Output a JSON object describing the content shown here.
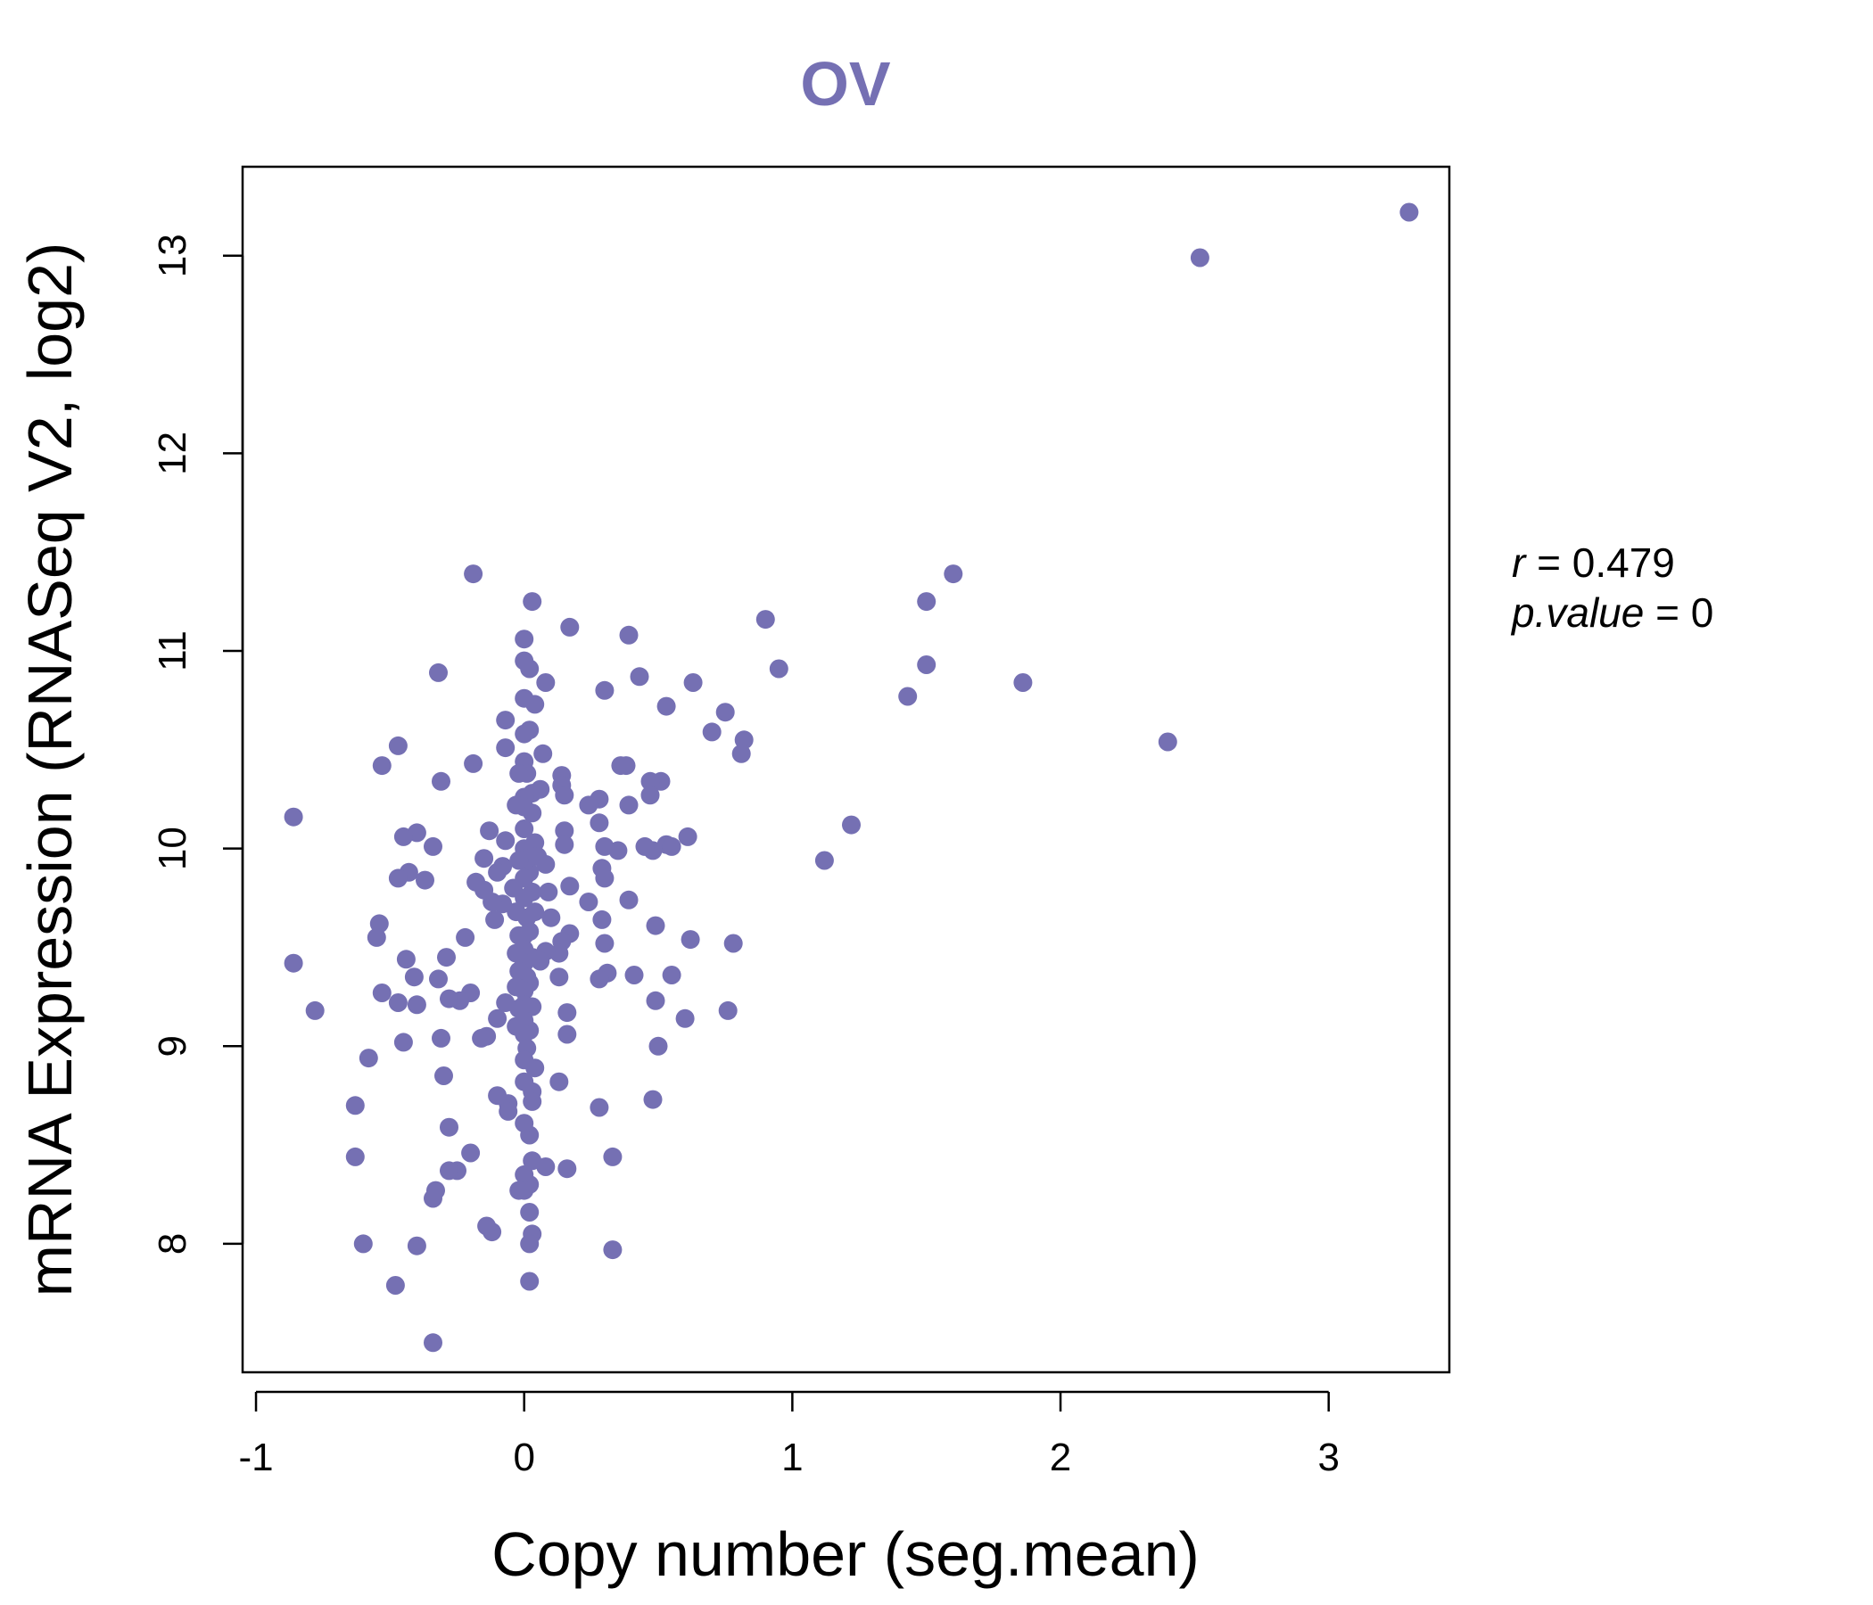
{
  "chart_data": {
    "type": "scatter",
    "title": "OV",
    "xlabel": "Copy number (seg.mean)",
    "ylabel": "mRNA Expression (RNASeq V2, log2)",
    "xlim": [
      -1.05,
      3.45
    ],
    "ylim": [
      7.35,
      13.45
    ],
    "x_ticks": [
      -1,
      0,
      1,
      2,
      3
    ],
    "x_tick_labels": [
      "-1",
      "0",
      "1",
      "2",
      "3"
    ],
    "y_ticks": [
      8,
      9,
      10,
      11,
      12,
      13
    ],
    "y_tick_labels": [
      "8",
      "9",
      "10",
      "11",
      "12",
      "13"
    ],
    "grid": false,
    "point_color": "#7570b3",
    "annotation": {
      "r_label": "r",
      "r_value": "0.479",
      "p_label": "p.value",
      "p_value": "0"
    },
    "points": [
      [
        3.3,
        13.22
      ],
      [
        2.52,
        12.99
      ],
      [
        1.6,
        11.39
      ],
      [
        1.5,
        11.25
      ],
      [
        1.5,
        10.93
      ],
      [
        1.43,
        10.77
      ],
      [
        1.86,
        10.84
      ],
      [
        2.4,
        10.54
      ],
      [
        1.22,
        10.12
      ],
      [
        1.12,
        9.94
      ],
      [
        0.9,
        11.16
      ],
      [
        0.95,
        10.91
      ],
      [
        0.82,
        10.55
      ],
      [
        0.81,
        10.48
      ],
      [
        0.75,
        10.69
      ],
      [
        0.7,
        10.59
      ],
      [
        0.63,
        10.84
      ],
      [
        0.61,
        10.06
      ],
      [
        0.62,
        9.54
      ],
      [
        0.6,
        9.14
      ],
      [
        0.78,
        9.52
      ],
      [
        0.76,
        9.18
      ],
      [
        0.53,
        10.72
      ],
      [
        0.53,
        10.02
      ],
      [
        0.55,
        10.01
      ],
      [
        0.51,
        10.34
      ],
      [
        0.47,
        10.34
      ],
      [
        0.47,
        10.27
      ],
      [
        0.48,
        9.99
      ],
      [
        0.45,
        10.01
      ],
      [
        0.43,
        10.87
      ],
      [
        0.39,
        11.08
      ],
      [
        0.36,
        10.42
      ],
      [
        0.38,
        10.42
      ],
      [
        0.39,
        10.22
      ],
      [
        0.35,
        9.99
      ],
      [
        0.39,
        9.74
      ],
      [
        0.49,
        9.61
      ],
      [
        0.55,
        9.36
      ],
      [
        0.49,
        9.23
      ],
      [
        0.5,
        9.0
      ],
      [
        0.48,
        8.73
      ],
      [
        0.41,
        9.36
      ],
      [
        0.33,
        8.44
      ],
      [
        0.33,
        7.97
      ],
      [
        0.3,
        10.8
      ],
      [
        0.28,
        10.25
      ],
      [
        0.28,
        10.13
      ],
      [
        0.3,
        10.01
      ],
      [
        0.29,
        9.9
      ],
      [
        0.3,
        9.85
      ],
      [
        0.24,
        10.22
      ],
      [
        0.24,
        9.73
      ],
      [
        0.29,
        9.64
      ],
      [
        0.3,
        9.52
      ],
      [
        0.31,
        9.37
      ],
      [
        0.28,
        9.34
      ],
      [
        0.28,
        8.69
      ],
      [
        0.17,
        11.12
      ],
      [
        0.14,
        10.37
      ],
      [
        0.14,
        10.32
      ],
      [
        0.15,
        10.27
      ],
      [
        0.15,
        10.09
      ],
      [
        0.15,
        10.02
      ],
      [
        0.17,
        9.81
      ],
      [
        0.17,
        9.57
      ],
      [
        0.14,
        9.53
      ],
      [
        0.13,
        9.47
      ],
      [
        0.13,
        9.35
      ],
      [
        0.16,
        9.17
      ],
      [
        0.16,
        9.06
      ],
      [
        0.13,
        8.82
      ],
      [
        0.16,
        8.38
      ],
      [
        0.08,
        10.84
      ],
      [
        0.07,
        10.48
      ],
      [
        0.06,
        10.3
      ],
      [
        0.08,
        9.92
      ],
      [
        0.09,
        9.78
      ],
      [
        0.1,
        9.65
      ],
      [
        0.08,
        9.48
      ],
      [
        0.06,
        9.43
      ],
      [
        0.08,
        8.39
      ],
      [
        0.03,
        11.25
      ],
      [
        0.04,
        10.73
      ],
      [
        0.02,
        10.6
      ],
      [
        0.03,
        10.28
      ],
      [
        0.03,
        10.18
      ],
      [
        0.04,
        10.03
      ],
      [
        0.05,
        9.96
      ],
      [
        0.02,
        9.88
      ],
      [
        0.03,
        9.78
      ],
      [
        0.04,
        9.68
      ],
      [
        0.02,
        9.58
      ],
      [
        0.03,
        9.45
      ],
      [
        0.02,
        9.32
      ],
      [
        0.03,
        9.2
      ],
      [
        0.02,
        9.08
      ],
      [
        0.04,
        8.89
      ],
      [
        0.03,
        8.77
      ],
      [
        0.03,
        8.72
      ],
      [
        0.02,
        8.55
      ],
      [
        0.03,
        8.42
      ],
      [
        0.02,
        8.3
      ],
      [
        0.02,
        8.16
      ],
      [
        0.03,
        8.05
      ],
      [
        0.02,
        8.0
      ],
      [
        0.02,
        7.81
      ],
      [
        0.0,
        11.06
      ],
      [
        0.0,
        10.95
      ],
      [
        0.02,
        10.91
      ],
      [
        0.0,
        10.76
      ],
      [
        0.0,
        10.58
      ],
      [
        0.0,
        10.44
      ],
      [
        0.01,
        10.38
      ],
      [
        0.0,
        10.26
      ],
      [
        0.0,
        10.21
      ],
      [
        0.0,
        10.1
      ],
      [
        0.0,
        10.0
      ],
      [
        0.01,
        9.95
      ],
      [
        0.0,
        9.85
      ],
      [
        0.0,
        9.75
      ],
      [
        0.01,
        9.65
      ],
      [
        0.0,
        9.56
      ],
      [
        0.0,
        9.49
      ],
      [
        0.0,
        9.42
      ],
      [
        0.01,
        9.35
      ],
      [
        0.0,
        9.28
      ],
      [
        0.0,
        9.21
      ],
      [
        0.0,
        9.13
      ],
      [
        0.0,
        9.06
      ],
      [
        0.01,
        8.99
      ],
      [
        0.0,
        8.93
      ],
      [
        0.0,
        8.82
      ],
      [
        0.0,
        8.61
      ],
      [
        0.0,
        8.35
      ],
      [
        0.0,
        8.27
      ],
      [
        -0.02,
        10.38
      ],
      [
        -0.03,
        10.22
      ],
      [
        -0.02,
        9.94
      ],
      [
        -0.04,
        9.8
      ],
      [
        -0.03,
        9.68
      ],
      [
        -0.02,
        9.56
      ],
      [
        -0.03,
        9.47
      ],
      [
        -0.02,
        9.38
      ],
      [
        -0.03,
        9.3
      ],
      [
        -0.02,
        9.19
      ],
      [
        -0.03,
        9.1
      ],
      [
        -0.02,
        8.27
      ],
      [
        -0.07,
        10.65
      ],
      [
        -0.07,
        10.51
      ],
      [
        -0.07,
        10.04
      ],
      [
        -0.08,
        9.91
      ],
      [
        -0.08,
        9.72
      ],
      [
        -0.07,
        9.22
      ],
      [
        -0.06,
        8.71
      ],
      [
        -0.06,
        8.67
      ],
      [
        -0.1,
        9.88
      ],
      [
        -0.11,
        9.64
      ],
      [
        -0.12,
        9.73
      ],
      [
        -0.1,
        9.14
      ],
      [
        -0.1,
        8.75
      ],
      [
        -0.12,
        8.06
      ],
      [
        -0.13,
        10.09
      ],
      [
        -0.15,
        9.95
      ],
      [
        -0.15,
        9.79
      ],
      [
        -0.14,
        9.05
      ],
      [
        -0.16,
        9.04
      ],
      [
        -0.14,
        8.09
      ],
      [
        -0.19,
        11.39
      ],
      [
        -0.19,
        10.43
      ],
      [
        -0.18,
        9.83
      ],
      [
        -0.2,
        9.27
      ],
      [
        -0.2,
        8.46
      ],
      [
        -0.22,
        9.55
      ],
      [
        -0.24,
        9.23
      ],
      [
        -0.25,
        8.37
      ],
      [
        -0.28,
        9.24
      ],
      [
        -0.28,
        8.59
      ],
      [
        -0.28,
        8.37
      ],
      [
        -0.29,
        9.45
      ],
      [
        -0.3,
        8.85
      ],
      [
        -0.31,
        9.04
      ],
      [
        -0.31,
        10.34
      ],
      [
        -0.32,
        9.34
      ],
      [
        -0.32,
        10.89
      ],
      [
        -0.33,
        8.27
      ],
      [
        -0.34,
        8.23
      ],
      [
        -0.34,
        7.5
      ],
      [
        -0.34,
        10.01
      ],
      [
        -0.37,
        9.84
      ],
      [
        -0.4,
        10.08
      ],
      [
        -0.41,
        9.35
      ],
      [
        -0.4,
        9.21
      ],
      [
        -0.4,
        7.99
      ],
      [
        -0.43,
        9.88
      ],
      [
        -0.44,
        9.44
      ],
      [
        -0.45,
        10.06
      ],
      [
        -0.45,
        9.02
      ],
      [
        -0.47,
        9.85
      ],
      [
        -0.47,
        9.22
      ],
      [
        -0.47,
        10.52
      ],
      [
        -0.48,
        7.79
      ],
      [
        -0.53,
        10.42
      ],
      [
        -0.53,
        9.27
      ],
      [
        -0.54,
        9.62
      ],
      [
        -0.55,
        9.55
      ],
      [
        -0.58,
        8.94
      ],
      [
        -0.6,
        8.0
      ],
      [
        -0.63,
        8.7
      ],
      [
        -0.63,
        8.44
      ],
      [
        -0.78,
        9.18
      ],
      [
        -0.86,
        10.16
      ],
      [
        -0.86,
        9.42
      ]
    ]
  }
}
